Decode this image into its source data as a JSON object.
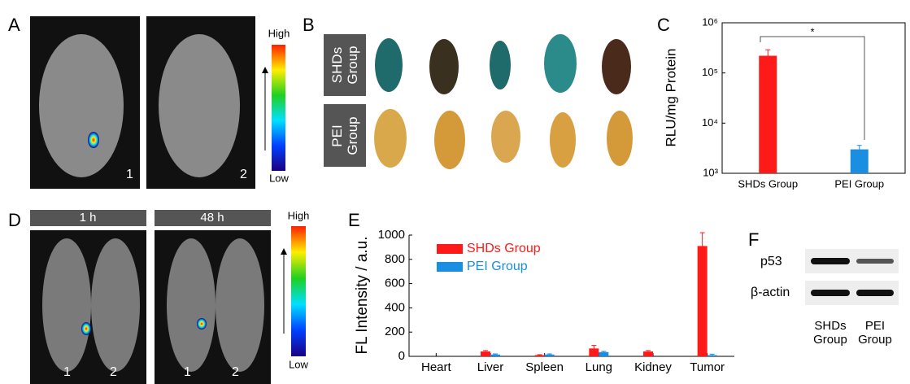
{
  "panel_labels": [
    "A",
    "B",
    "C",
    "D",
    "E",
    "F"
  ],
  "panel_a": {
    "colorbar_high": "High",
    "colorbar_low": "Low",
    "mouse_labels": [
      "1",
      "2"
    ]
  },
  "panel_b": {
    "groups": [
      "SHDs Group",
      "PEI Group"
    ]
  },
  "panel_d": {
    "timepoints": [
      "1 h",
      "48 h"
    ],
    "mouse_labels": [
      "1",
      "2"
    ],
    "colorbar_high": "High",
    "colorbar_low": "Low"
  },
  "panel_f": {
    "bands": [
      "p53",
      "β-actin"
    ],
    "groups": [
      "SHDs Group",
      "PEI Group"
    ]
  },
  "chart_data": [
    {
      "type": "bar",
      "ylabel": "RLU/mg Protein",
      "annotation": "*",
      "categories": [
        "SHDs Group",
        "PEI Group"
      ],
      "values": [
        220000,
        3000
      ],
      "errors": [
        70000,
        600
      ],
      "colors": [
        "#ff1a1a",
        "#1a8ee0"
      ],
      "log_scale": true,
      "ylim": [
        1000,
        1000000
      ],
      "yticks": [
        {
          "value": 1000,
          "label": "10³"
        },
        {
          "value": 10000,
          "label": "10⁴"
        },
        {
          "value": 100000,
          "label": "10⁵"
        },
        {
          "value": 1000000,
          "label": "10⁶"
        }
      ]
    },
    {
      "type": "grouped_bar",
      "ylabel": "FL Intensity / a.u.",
      "categories": [
        "Heart",
        "Liver",
        "Spleen",
        "Lung",
        "Kidney",
        "Tumor"
      ],
      "series": [
        {
          "name": "SHDs Group",
          "color": "#ff1a1a",
          "values": [
            0,
            40,
            10,
            65,
            40,
            910
          ],
          "errors": [
            0,
            8,
            4,
            25,
            8,
            110
          ]
        },
        {
          "name": "PEI Group",
          "color": "#1a8ee0",
          "values": [
            0,
            15,
            15,
            35,
            0,
            10
          ],
          "errors": [
            0,
            5,
            5,
            6,
            0,
            8
          ]
        }
      ],
      "ylim": [
        0,
        1000
      ],
      "yticks": [
        0,
        200,
        400,
        600,
        800,
        1000
      ]
    }
  ]
}
